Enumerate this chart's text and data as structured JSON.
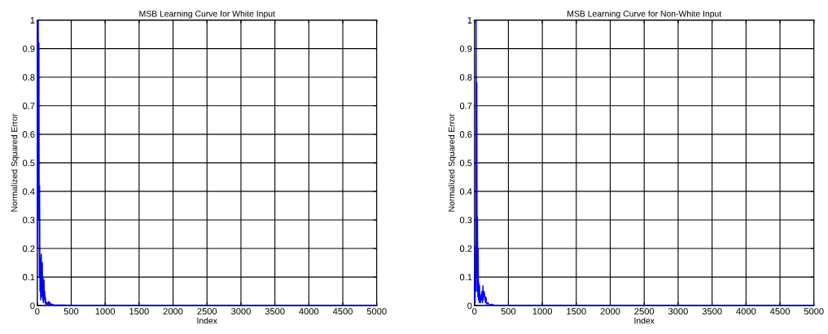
{
  "chart_data": [
    {
      "type": "line",
      "title": "MSB Learning Curve for White Input",
      "xlabel": "Index",
      "ylabel": "Normalized Squared Error",
      "xlim": [
        0,
        5000
      ],
      "ylim": [
        0,
        1
      ],
      "xticks": [
        0,
        500,
        1000,
        1500,
        2000,
        2500,
        3000,
        3500,
        4000,
        4500,
        5000
      ],
      "yticks": [
        0,
        0.1,
        0.2,
        0.3,
        0.4,
        0.5,
        0.6,
        0.7,
        0.8,
        0.9,
        1
      ],
      "grid": true,
      "marker": "none",
      "series": [
        {
          "color": "#0000ff",
          "x": [
            0,
            5,
            10,
            15,
            20,
            25,
            30,
            35,
            40,
            45,
            50,
            55,
            60,
            65,
            70,
            75,
            80,
            85,
            90,
            100,
            105,
            110,
            115,
            120,
            125,
            130,
            140,
            150,
            160,
            170,
            180,
            190,
            200,
            220,
            250,
            300,
            400,
            500,
            1000,
            2000,
            3000,
            4000,
            5000
          ],
          "values": [
            0.2,
            1.0,
            0.43,
            1.0,
            0.3,
            0.92,
            0.1,
            0.42,
            0.05,
            0.16,
            0.02,
            0.16,
            0.18,
            0.03,
            0.12,
            0.15,
            0.02,
            0.1,
            0.01,
            0.09,
            0.02,
            0.05,
            0.01,
            0.03,
            0.005,
            0.015,
            0.005,
            0.01,
            0.003,
            0.015,
            0.004,
            0.01,
            0.003,
            0.005,
            0.002,
            0.002,
            0.002,
            0.001,
            0.001,
            0.001,
            0.001,
            0.001,
            0.001
          ]
        }
      ]
    },
    {
      "type": "line",
      "title": "MSB Learning Curve for Non-White Input",
      "xlabel": "Index",
      "ylabel": "Normalized Squared Error",
      "xlim": [
        0,
        5000
      ],
      "ylim": [
        0,
        1
      ],
      "xticks": [
        0,
        500,
        1000,
        1500,
        2000,
        2500,
        3000,
        3500,
        4000,
        4500,
        5000
      ],
      "yticks": [
        0,
        0.1,
        0.2,
        0.3,
        0.4,
        0.5,
        0.6,
        0.7,
        0.8,
        0.9,
        1
      ],
      "grid": true,
      "marker": "none",
      "series": [
        {
          "color": "#0000ff",
          "x": [
            0,
            5,
            10,
            15,
            20,
            25,
            30,
            35,
            40,
            45,
            50,
            55,
            60,
            65,
            70,
            75,
            80,
            85,
            90,
            100,
            110,
            120,
            125,
            130,
            140,
            150,
            160,
            170,
            180,
            200,
            220,
            250,
            300,
            500,
            1000,
            2000,
            3000,
            4000,
            5000
          ],
          "values": [
            0.02,
            0.1,
            0.01,
            0.21,
            0.05,
            1.0,
            0.1,
            0.78,
            0.05,
            0.31,
            0.03,
            0.2,
            0.02,
            0.08,
            0.01,
            0.07,
            0.02,
            0.04,
            0.01,
            0.02,
            0.05,
            0.01,
            0.07,
            0.02,
            0.05,
            0.04,
            0.01,
            0.03,
            0.005,
            0.01,
            0.002,
            0.005,
            0.001,
            0.001,
            0.001,
            0.001,
            0.001,
            0.001,
            0.001
          ]
        }
      ]
    }
  ]
}
